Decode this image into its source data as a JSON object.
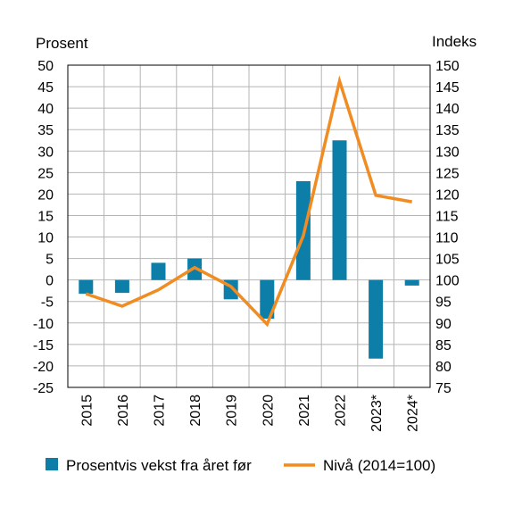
{
  "chart_data": {
    "type": "bar+line",
    "categories": [
      "2015",
      "2016",
      "2017",
      "2018",
      "2019",
      "2020",
      "2021",
      "2022",
      "2023*",
      "2024*"
    ],
    "series": [
      {
        "name": "Prosentvis vekst fra året før",
        "type": "bar",
        "axis": "left",
        "color": "#0d7ea8",
        "values": [
          -3.2,
          -3.0,
          4.0,
          5.0,
          -4.5,
          -9.0,
          23.0,
          32.5,
          -18.3,
          -1.3
        ]
      },
      {
        "name": "Nivå (2014=100)",
        "type": "line",
        "axis": "right",
        "color": "#f08c22",
        "values": [
          96.8,
          93.9,
          97.7,
          102.9,
          98.5,
          89.7,
          110.3,
          146.3,
          119.7,
          118.2
        ]
      }
    ],
    "ylabel_left": "Prosent",
    "ylabel_right": "Indeks",
    "ylim_left": [
      -25,
      50
    ],
    "ylim_right": [
      75,
      150
    ],
    "yticks_left": [
      50,
      45,
      40,
      35,
      30,
      25,
      20,
      15,
      10,
      5,
      0,
      -5,
      -10,
      -15,
      -20,
      -25
    ],
    "yticks_right": [
      150,
      145,
      140,
      135,
      130,
      125,
      120,
      115,
      110,
      105,
      100,
      95,
      90,
      85,
      80,
      75
    ],
    "grid": true,
    "legend_position": "bottom"
  }
}
